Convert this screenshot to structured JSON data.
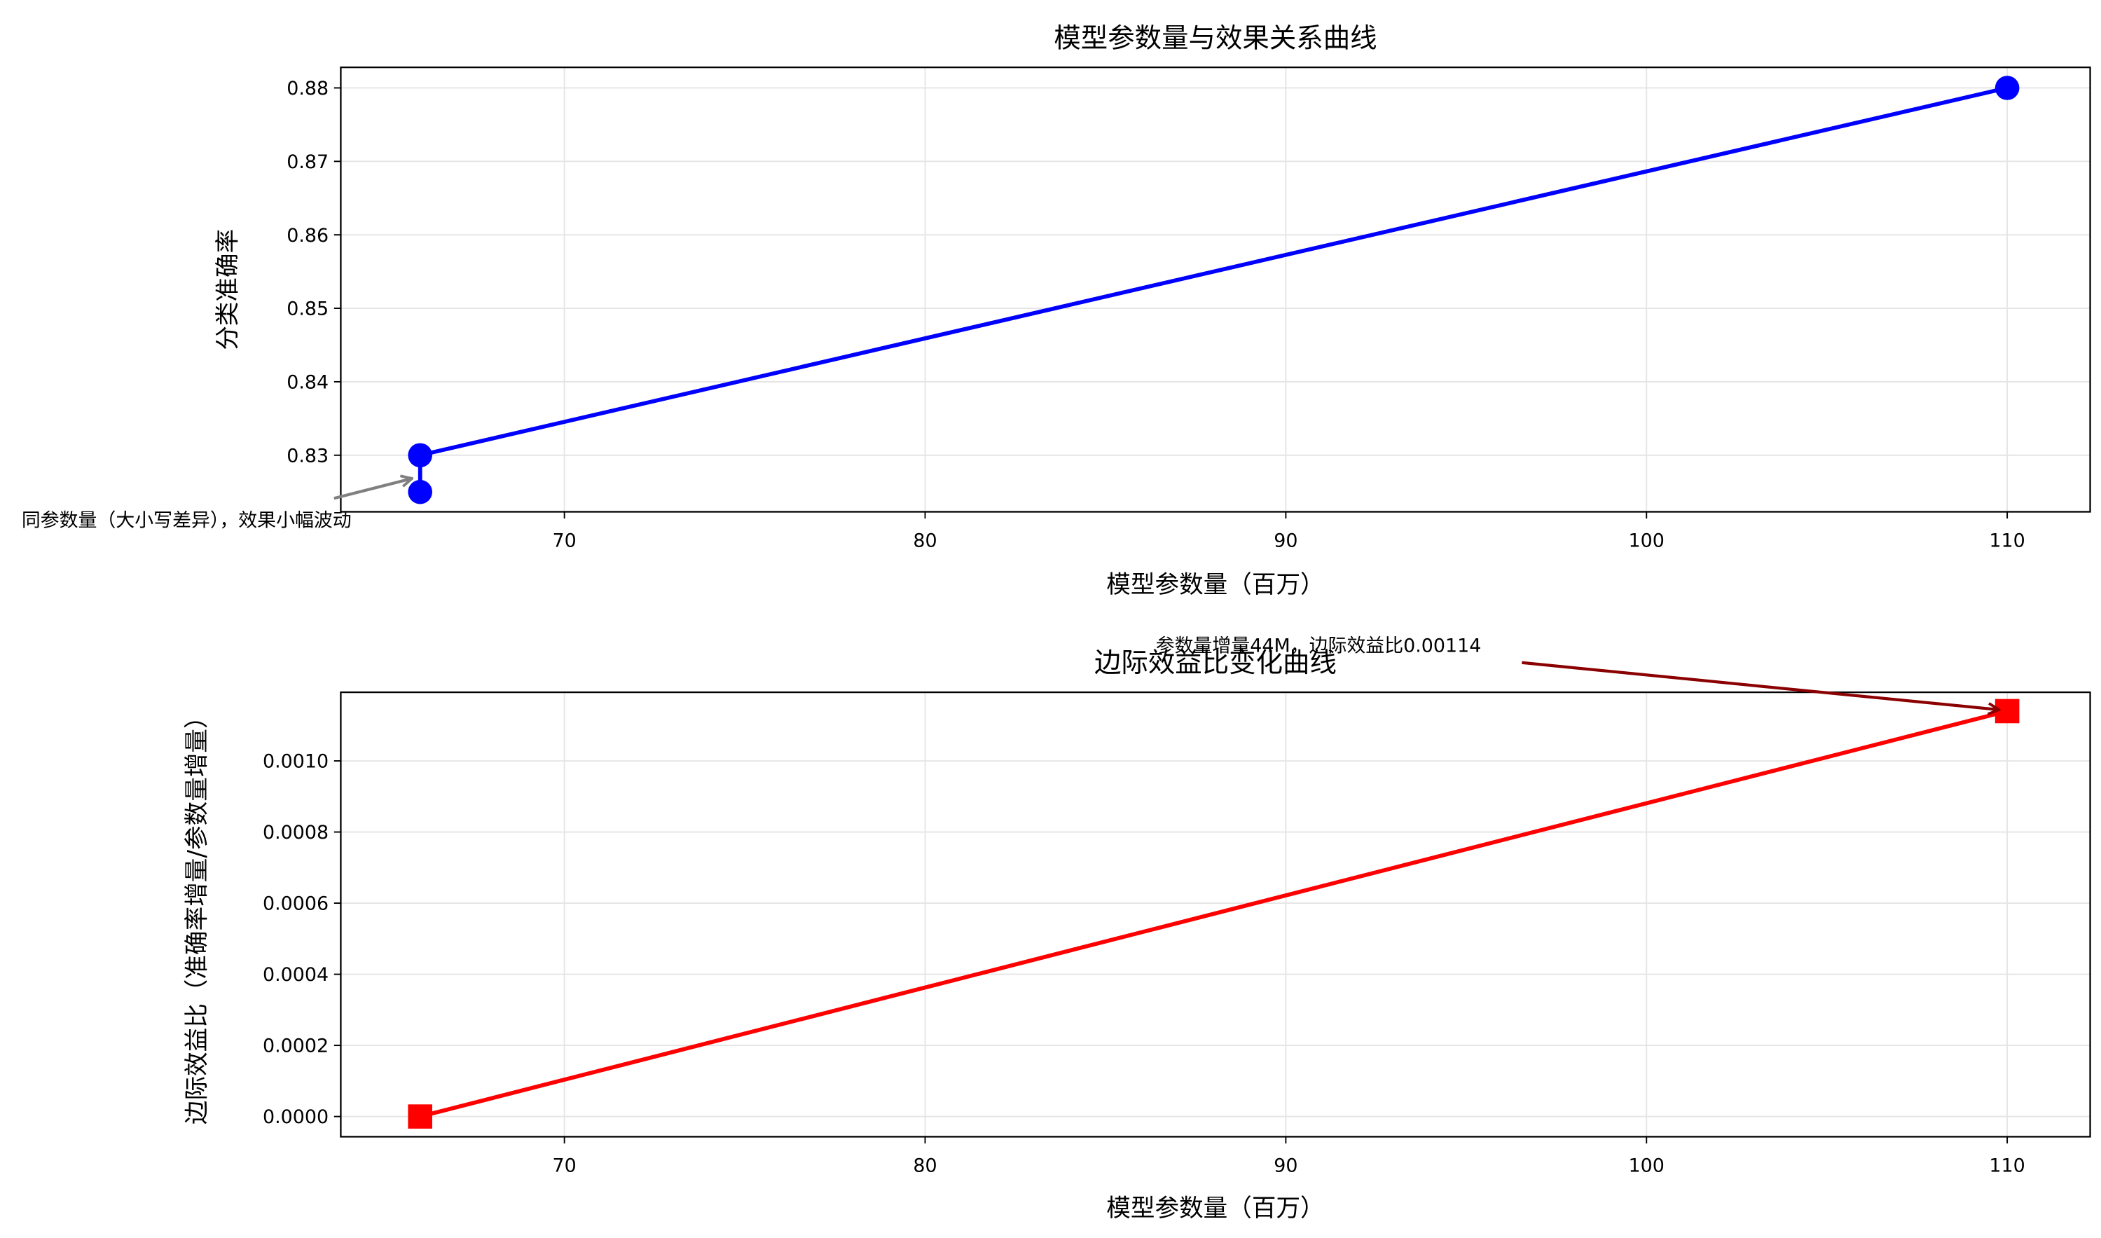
{
  "chart_data": [
    {
      "type": "line",
      "title": "模型参数量与效果关系曲线",
      "xlabel": "模型参数量（百万）",
      "ylabel": "分类准确率",
      "x": [
        66,
        66,
        110
      ],
      "values": [
        0.825,
        0.83,
        0.88
      ],
      "color": "#0000ff",
      "marker": "circle",
      "xlim": [
        63.8,
        112.3
      ],
      "ylim": [
        0.8223,
        0.8828
      ],
      "xticks": [
        70,
        80,
        90,
        100,
        110
      ],
      "yticks": [
        0.83,
        0.84,
        0.85,
        0.86,
        0.87,
        0.88
      ],
      "grid": true,
      "annotation": {
        "text": "同参数量（大小写差异），效果小幅波动",
        "color": "#808080"
      }
    },
    {
      "type": "line",
      "title": "边际效益比变化曲线",
      "xlabel": "模型参数量（百万）",
      "ylabel": "边际效益比（准确率增量/参数量增量）",
      "x": [
        66,
        110
      ],
      "values": [
        0,
        0.00114
      ],
      "color": "#ff0000",
      "marker": "square",
      "xlim": [
        63.8,
        112.3
      ],
      "ylim": [
        -5.68e-05,
        0.001193
      ],
      "xticks": [
        70,
        80,
        90,
        100,
        110
      ],
      "yticks": [
        {
          "value": 0,
          "label": "0.0000"
        },
        {
          "value": 0.0002,
          "label": "0.0002"
        },
        {
          "value": 0.0004,
          "label": "0.0004"
        },
        {
          "value": 0.0006,
          "label": "0.0006"
        },
        {
          "value": 0.0008,
          "label": "0.0008"
        },
        {
          "value": 0.001,
          "label": "0.0010"
        }
      ],
      "grid": true,
      "annotation": {
        "text": "参数量增量44M，边际效益比0.00114",
        "color": "#8b0000"
      }
    }
  ]
}
